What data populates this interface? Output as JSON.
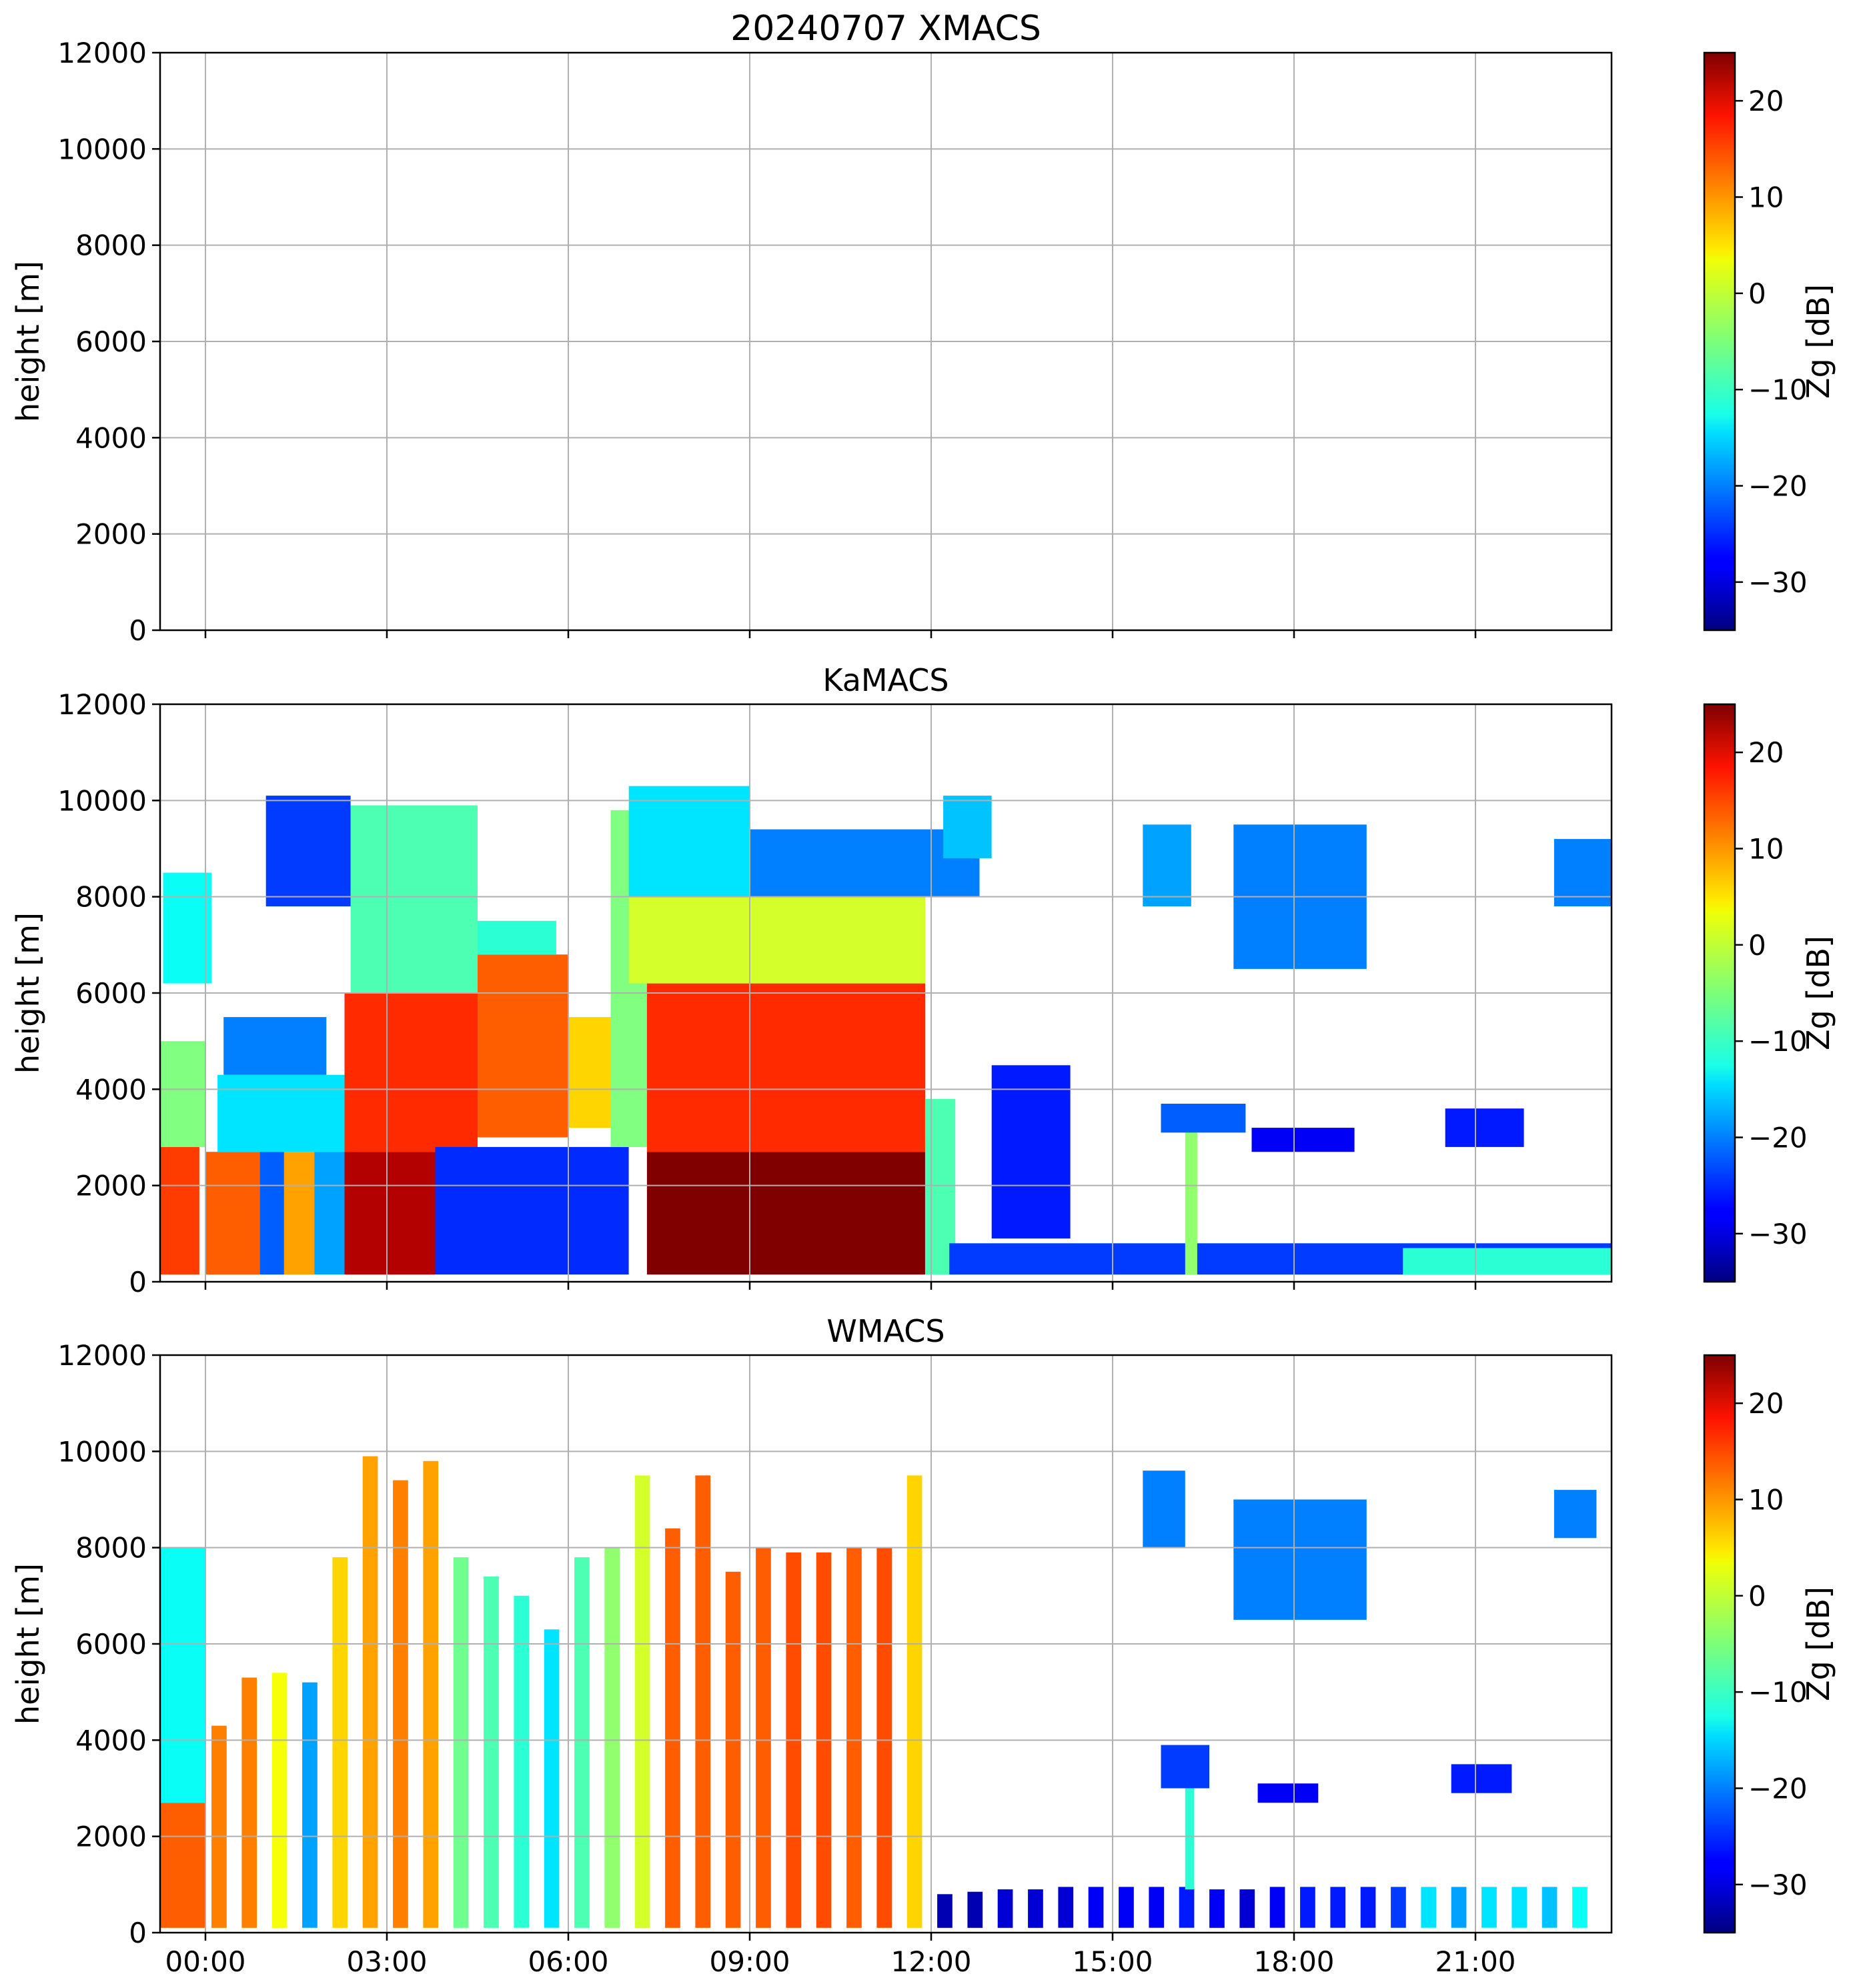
{
  "chart_data": [
    {
      "type": "heatmap",
      "title": "20240707 XMACS",
      "xlabel": "",
      "ylabel": "height [m]",
      "ylim": [
        0,
        12000
      ],
      "xlim_hours": [
        -0.75,
        23.25
      ],
      "x_ticks": [
        "00:00",
        "03:00",
        "06:00",
        "09:00",
        "12:00",
        "15:00",
        "18:00",
        "21:00"
      ],
      "x_tick_labels_visible": false,
      "y_ticks": [
        "0",
        "2000",
        "4000",
        "6000",
        "8000",
        "10000",
        "12000"
      ],
      "grid": true,
      "colorbar": {
        "label": "Zg [dB]",
        "range": [
          -35,
          25
        ],
        "ticks": [
          "−30",
          "−20",
          "−10",
          "0",
          "10",
          "20"
        ],
        "colormap": "jet"
      },
      "data_present": false,
      "features": []
    },
    {
      "type": "heatmap",
      "title": "KaMACS",
      "xlabel": "",
      "ylabel": "height [m]",
      "ylim": [
        0,
        12000
      ],
      "xlim_hours": [
        -0.75,
        23.25
      ],
      "x_ticks": [
        "00:00",
        "03:00",
        "06:00",
        "09:00",
        "12:00",
        "15:00",
        "18:00",
        "21:00"
      ],
      "x_tick_labels_visible": false,
      "y_ticks": [
        "0",
        "2000",
        "4000",
        "6000",
        "8000",
        "10000",
        "12000"
      ],
      "grid": true,
      "colorbar": {
        "label": "Zg [dB]",
        "range": [
          -35,
          25
        ],
        "ticks": [
          "−30",
          "−20",
          "−10",
          "0",
          "10",
          "20"
        ],
        "colormap": "jet"
      },
      "data_present": true,
      "features": [
        {
          "t0": -0.75,
          "t1": -0.1,
          "h0": 150,
          "h1": 2800,
          "zg": 14
        },
        {
          "t0": -0.75,
          "t1": 0.0,
          "h0": 2800,
          "h1": 5000,
          "zg": -5
        },
        {
          "t0": -0.7,
          "t1": 0.1,
          "h0": 6200,
          "h1": 8500,
          "zg": -12
        },
        {
          "t0": 0.0,
          "t1": 0.9,
          "h0": 150,
          "h1": 2700,
          "zg": 12
        },
        {
          "t0": 0.2,
          "t1": 2.5,
          "h0": 2700,
          "h1": 4300,
          "zg": -14
        },
        {
          "t0": 0.3,
          "t1": 2.0,
          "h0": 4300,
          "h1": 5500,
          "zg": -20
        },
        {
          "t0": 0.9,
          "t1": 1.3,
          "h0": 150,
          "h1": 2700,
          "zg": -22
        },
        {
          "t0": 1.3,
          "t1": 1.8,
          "h0": 150,
          "h1": 2700,
          "zg": 8
        },
        {
          "t0": 1.8,
          "t1": 2.3,
          "h0": 150,
          "h1": 2700,
          "zg": -18
        },
        {
          "t0": 2.3,
          "t1": 3.8,
          "h0": 150,
          "h1": 2700,
          "zg": 22
        },
        {
          "t0": 2.3,
          "t1": 4.5,
          "h0": 2700,
          "h1": 6000,
          "zg": 15
        },
        {
          "t0": 2.4,
          "t1": 4.5,
          "h0": 6000,
          "h1": 9900,
          "zg": -8
        },
        {
          "t0": 1.0,
          "t1": 2.4,
          "h0": 7800,
          "h1": 10100,
          "zg": -24
        },
        {
          "t0": 3.8,
          "t1": 7.0,
          "h0": 150,
          "h1": 2800,
          "zg": -25
        },
        {
          "t0": 4.5,
          "t1": 6.0,
          "h0": 3000,
          "h1": 6800,
          "zg": 12
        },
        {
          "t0": 6.0,
          "t1": 6.8,
          "h0": 3200,
          "h1": 5500,
          "zg": 5
        },
        {
          "t0": 4.5,
          "t1": 5.8,
          "h0": 6800,
          "h1": 7500,
          "zg": -10
        },
        {
          "t0": 6.7,
          "t1": 7.3,
          "h0": 2800,
          "h1": 9800,
          "zg": -5
        },
        {
          "t0": 7.3,
          "t1": 11.9,
          "h0": 150,
          "h1": 2700,
          "zg": 25
        },
        {
          "t0": 7.3,
          "t1": 11.9,
          "h0": 2700,
          "h1": 6200,
          "zg": 15
        },
        {
          "t0": 7.0,
          "t1": 11.9,
          "h0": 6200,
          "h1": 8000,
          "zg": 0
        },
        {
          "t0": 7.0,
          "t1": 9.0,
          "h0": 8000,
          "h1": 10300,
          "zg": -14
        },
        {
          "t0": 9.0,
          "t1": 12.8,
          "h0": 8000,
          "h1": 9400,
          "zg": -20
        },
        {
          "t0": 11.9,
          "t1": 12.4,
          "h0": 150,
          "h1": 3800,
          "zg": -8
        },
        {
          "t0": 12.2,
          "t1": 13.0,
          "h0": 8800,
          "h1": 10100,
          "zg": -16
        },
        {
          "t0": 12.3,
          "t1": 23.25,
          "h0": 150,
          "h1": 800,
          "zg": -24
        },
        {
          "t0": 19.8,
          "t1": 23.25,
          "h0": 150,
          "h1": 700,
          "zg": -10
        },
        {
          "t0": 16.2,
          "t1": 16.4,
          "h0": 150,
          "h1": 3700,
          "zg": -4
        },
        {
          "t0": 15.8,
          "t1": 17.2,
          "h0": 3100,
          "h1": 3700,
          "zg": -22
        },
        {
          "t0": 13.0,
          "t1": 14.3,
          "h0": 900,
          "h1": 4500,
          "zg": -26
        },
        {
          "t0": 15.5,
          "t1": 16.3,
          "h0": 7800,
          "h1": 9500,
          "zg": -18
        },
        {
          "t0": 17.0,
          "t1": 19.2,
          "h0": 6500,
          "h1": 9500,
          "zg": -20
        },
        {
          "t0": 17.3,
          "t1": 19.0,
          "h0": 2700,
          "h1": 3200,
          "zg": -28
        },
        {
          "t0": 20.5,
          "t1": 21.8,
          "h0": 2800,
          "h1": 3600,
          "zg": -26
        },
        {
          "t0": 22.3,
          "t1": 23.25,
          "h0": 7800,
          "h1": 9200,
          "zg": -20
        }
      ]
    },
    {
      "type": "heatmap",
      "title": "WMACS",
      "xlabel": "",
      "ylabel": "height [m]",
      "ylim": [
        0,
        12000
      ],
      "xlim_hours": [
        -0.75,
        23.25
      ],
      "x_ticks": [
        "00:00",
        "03:00",
        "06:00",
        "09:00",
        "12:00",
        "15:00",
        "18:00",
        "21:00"
      ],
      "x_tick_labels_visible": true,
      "y_ticks": [
        "0",
        "2000",
        "4000",
        "6000",
        "8000",
        "10000",
        "12000"
      ],
      "grid": true,
      "colorbar": {
        "label": "Zg [dB]",
        "range": [
          -35,
          25
        ],
        "ticks": [
          "−30",
          "−20",
          "−10",
          "0",
          "10",
          "20"
        ],
        "colormap": "jet"
      },
      "data_present": true,
      "features": [
        {
          "t0": -0.75,
          "t1": 0.0,
          "h0": 100,
          "h1": 2700,
          "zg": 12
        },
        {
          "t0": -0.75,
          "t1": 0.0,
          "h0": 2700,
          "h1": 8000,
          "zg": -12
        },
        {
          "t0": 0.1,
          "t1": 0.35,
          "h0": 100,
          "h1": 4300,
          "zg": 10
        },
        {
          "t0": 0.6,
          "t1": 0.85,
          "h0": 100,
          "h1": 5300,
          "zg": 10
        },
        {
          "t0": 1.1,
          "t1": 1.35,
          "h0": 100,
          "h1": 5400,
          "zg": 2
        },
        {
          "t0": 1.6,
          "t1": 1.85,
          "h0": 100,
          "h1": 5200,
          "zg": -18
        },
        {
          "t0": 2.1,
          "t1": 2.35,
          "h0": 100,
          "h1": 7800,
          "zg": 5
        },
        {
          "t0": 2.6,
          "t1": 2.85,
          "h0": 100,
          "h1": 9900,
          "zg": 8
        },
        {
          "t0": 3.1,
          "t1": 3.35,
          "h0": 100,
          "h1": 9400,
          "zg": 10
        },
        {
          "t0": 3.6,
          "t1": 3.85,
          "h0": 100,
          "h1": 9800,
          "zg": 8
        },
        {
          "t0": 4.1,
          "t1": 4.35,
          "h0": 100,
          "h1": 7800,
          "zg": -6
        },
        {
          "t0": 4.6,
          "t1": 4.85,
          "h0": 100,
          "h1": 7400,
          "zg": -8
        },
        {
          "t0": 5.1,
          "t1": 5.35,
          "h0": 100,
          "h1": 7000,
          "zg": -10
        },
        {
          "t0": 5.6,
          "t1": 5.85,
          "h0": 100,
          "h1": 6300,
          "zg": -14
        },
        {
          "t0": 6.1,
          "t1": 6.35,
          "h0": 100,
          "h1": 7800,
          "zg": -8
        },
        {
          "t0": 6.6,
          "t1": 6.85,
          "h0": 100,
          "h1": 8000,
          "zg": -4
        },
        {
          "t0": 7.1,
          "t1": 7.35,
          "h0": 100,
          "h1": 9500,
          "zg": 0
        },
        {
          "t0": 7.6,
          "t1": 7.85,
          "h0": 100,
          "h1": 8400,
          "zg": 12
        },
        {
          "t0": 8.1,
          "t1": 8.35,
          "h0": 100,
          "h1": 9500,
          "zg": 12
        },
        {
          "t0": 8.6,
          "t1": 8.85,
          "h0": 100,
          "h1": 7500,
          "zg": 12
        },
        {
          "t0": 9.1,
          "t1": 9.35,
          "h0": 100,
          "h1": 8000,
          "zg": 12
        },
        {
          "t0": 9.6,
          "t1": 9.85,
          "h0": 100,
          "h1": 7900,
          "zg": 13
        },
        {
          "t0": 10.1,
          "t1": 10.35,
          "h0": 100,
          "h1": 7900,
          "zg": 13
        },
        {
          "t0": 10.6,
          "t1": 10.85,
          "h0": 100,
          "h1": 8000,
          "zg": 12
        },
        {
          "t0": 11.1,
          "t1": 11.35,
          "h0": 100,
          "h1": 8000,
          "zg": 13
        },
        {
          "t0": 11.6,
          "t1": 11.85,
          "h0": 100,
          "h1": 9500,
          "zg": 5
        },
        {
          "t0": 12.1,
          "t1": 12.35,
          "h0": 100,
          "h1": 800,
          "zg": -32
        },
        {
          "t0": 12.6,
          "t1": 12.85,
          "h0": 100,
          "h1": 850,
          "zg": -32
        },
        {
          "t0": 13.1,
          "t1": 13.35,
          "h0": 100,
          "h1": 900,
          "zg": -30
        },
        {
          "t0": 13.6,
          "t1": 13.85,
          "h0": 100,
          "h1": 900,
          "zg": -30
        },
        {
          "t0": 14.1,
          "t1": 14.35,
          "h0": 100,
          "h1": 950,
          "zg": -30
        },
        {
          "t0": 14.6,
          "t1": 14.85,
          "h0": 100,
          "h1": 950,
          "zg": -28
        },
        {
          "t0": 15.1,
          "t1": 15.35,
          "h0": 100,
          "h1": 950,
          "zg": -28
        },
        {
          "t0": 15.6,
          "t1": 15.85,
          "h0": 100,
          "h1": 950,
          "zg": -28
        },
        {
          "t0": 16.1,
          "t1": 16.35,
          "h0": 100,
          "h1": 950,
          "zg": -26
        },
        {
          "t0": 16.6,
          "t1": 16.85,
          "h0": 100,
          "h1": 900,
          "zg": -28
        },
        {
          "t0": 17.1,
          "t1": 17.35,
          "h0": 100,
          "h1": 900,
          "zg": -30
        },
        {
          "t0": 17.6,
          "t1": 17.85,
          "h0": 100,
          "h1": 950,
          "zg": -28
        },
        {
          "t0": 18.1,
          "t1": 18.35,
          "h0": 100,
          "h1": 950,
          "zg": -26
        },
        {
          "t0": 18.6,
          "t1": 18.85,
          "h0": 100,
          "h1": 950,
          "zg": -26
        },
        {
          "t0": 19.1,
          "t1": 19.35,
          "h0": 100,
          "h1": 950,
          "zg": -26
        },
        {
          "t0": 19.6,
          "t1": 19.85,
          "h0": 100,
          "h1": 950,
          "zg": -24
        },
        {
          "t0": 20.1,
          "t1": 20.35,
          "h0": 100,
          "h1": 950,
          "zg": -14
        },
        {
          "t0": 20.6,
          "t1": 20.85,
          "h0": 100,
          "h1": 950,
          "zg": -18
        },
        {
          "t0": 21.1,
          "t1": 21.35,
          "h0": 100,
          "h1": 950,
          "zg": -14
        },
        {
          "t0": 21.6,
          "t1": 21.85,
          "h0": 100,
          "h1": 950,
          "zg": -14
        },
        {
          "t0": 22.1,
          "t1": 22.35,
          "h0": 100,
          "h1": 950,
          "zg": -16
        },
        {
          "t0": 22.6,
          "t1": 22.85,
          "h0": 100,
          "h1": 950,
          "zg": -12
        },
        {
          "t0": 16.2,
          "t1": 16.35,
          "h0": 900,
          "h1": 3800,
          "zg": -10
        },
        {
          "t0": 15.8,
          "t1": 16.6,
          "h0": 3000,
          "h1": 3900,
          "zg": -24
        },
        {
          "t0": 15.5,
          "t1": 16.2,
          "h0": 8000,
          "h1": 9600,
          "zg": -20
        },
        {
          "t0": 17.0,
          "t1": 19.2,
          "h0": 6500,
          "h1": 9000,
          "zg": -20
        },
        {
          "t0": 17.4,
          "t1": 18.4,
          "h0": 2700,
          "h1": 3100,
          "zg": -28
        },
        {
          "t0": 20.6,
          "t1": 21.6,
          "h0": 2900,
          "h1": 3500,
          "zg": -26
        },
        {
          "t0": 22.3,
          "t1": 23.0,
          "h0": 8200,
          "h1": 9200,
          "zg": -20
        }
      ]
    }
  ]
}
